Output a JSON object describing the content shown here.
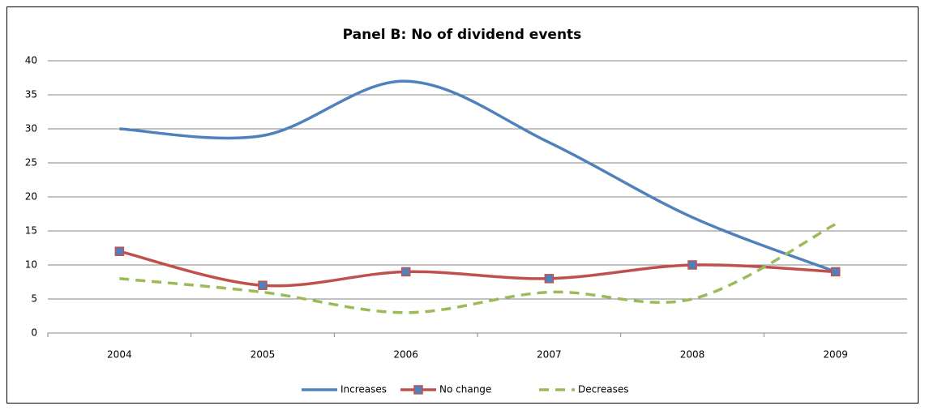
{
  "chart_data": {
    "type": "line",
    "title": "Panel B: No of dividend events",
    "categories": [
      "2004",
      "2005",
      "2006",
      "2007",
      "2008",
      "2009"
    ],
    "series": [
      {
        "name": "Increases",
        "color": "#4f81bd",
        "values": [
          30,
          29,
          37,
          28,
          17,
          9
        ]
      },
      {
        "name": "No change",
        "color": "#c0504d",
        "values": [
          12,
          7,
          9,
          8,
          10,
          9
        ],
        "marker": "square",
        "marker_color": "#4f81bd"
      },
      {
        "name": "Decreases",
        "color": "#9bbb59",
        "values": [
          8,
          6,
          3,
          6,
          5,
          16
        ],
        "line_style": "dashed"
      }
    ],
    "ylim": [
      0,
      40
    ],
    "yticks": [
      0,
      5,
      10,
      15,
      20,
      25,
      30,
      35,
      40
    ],
    "grid": true,
    "smooth": true,
    "legend": "bottom"
  }
}
